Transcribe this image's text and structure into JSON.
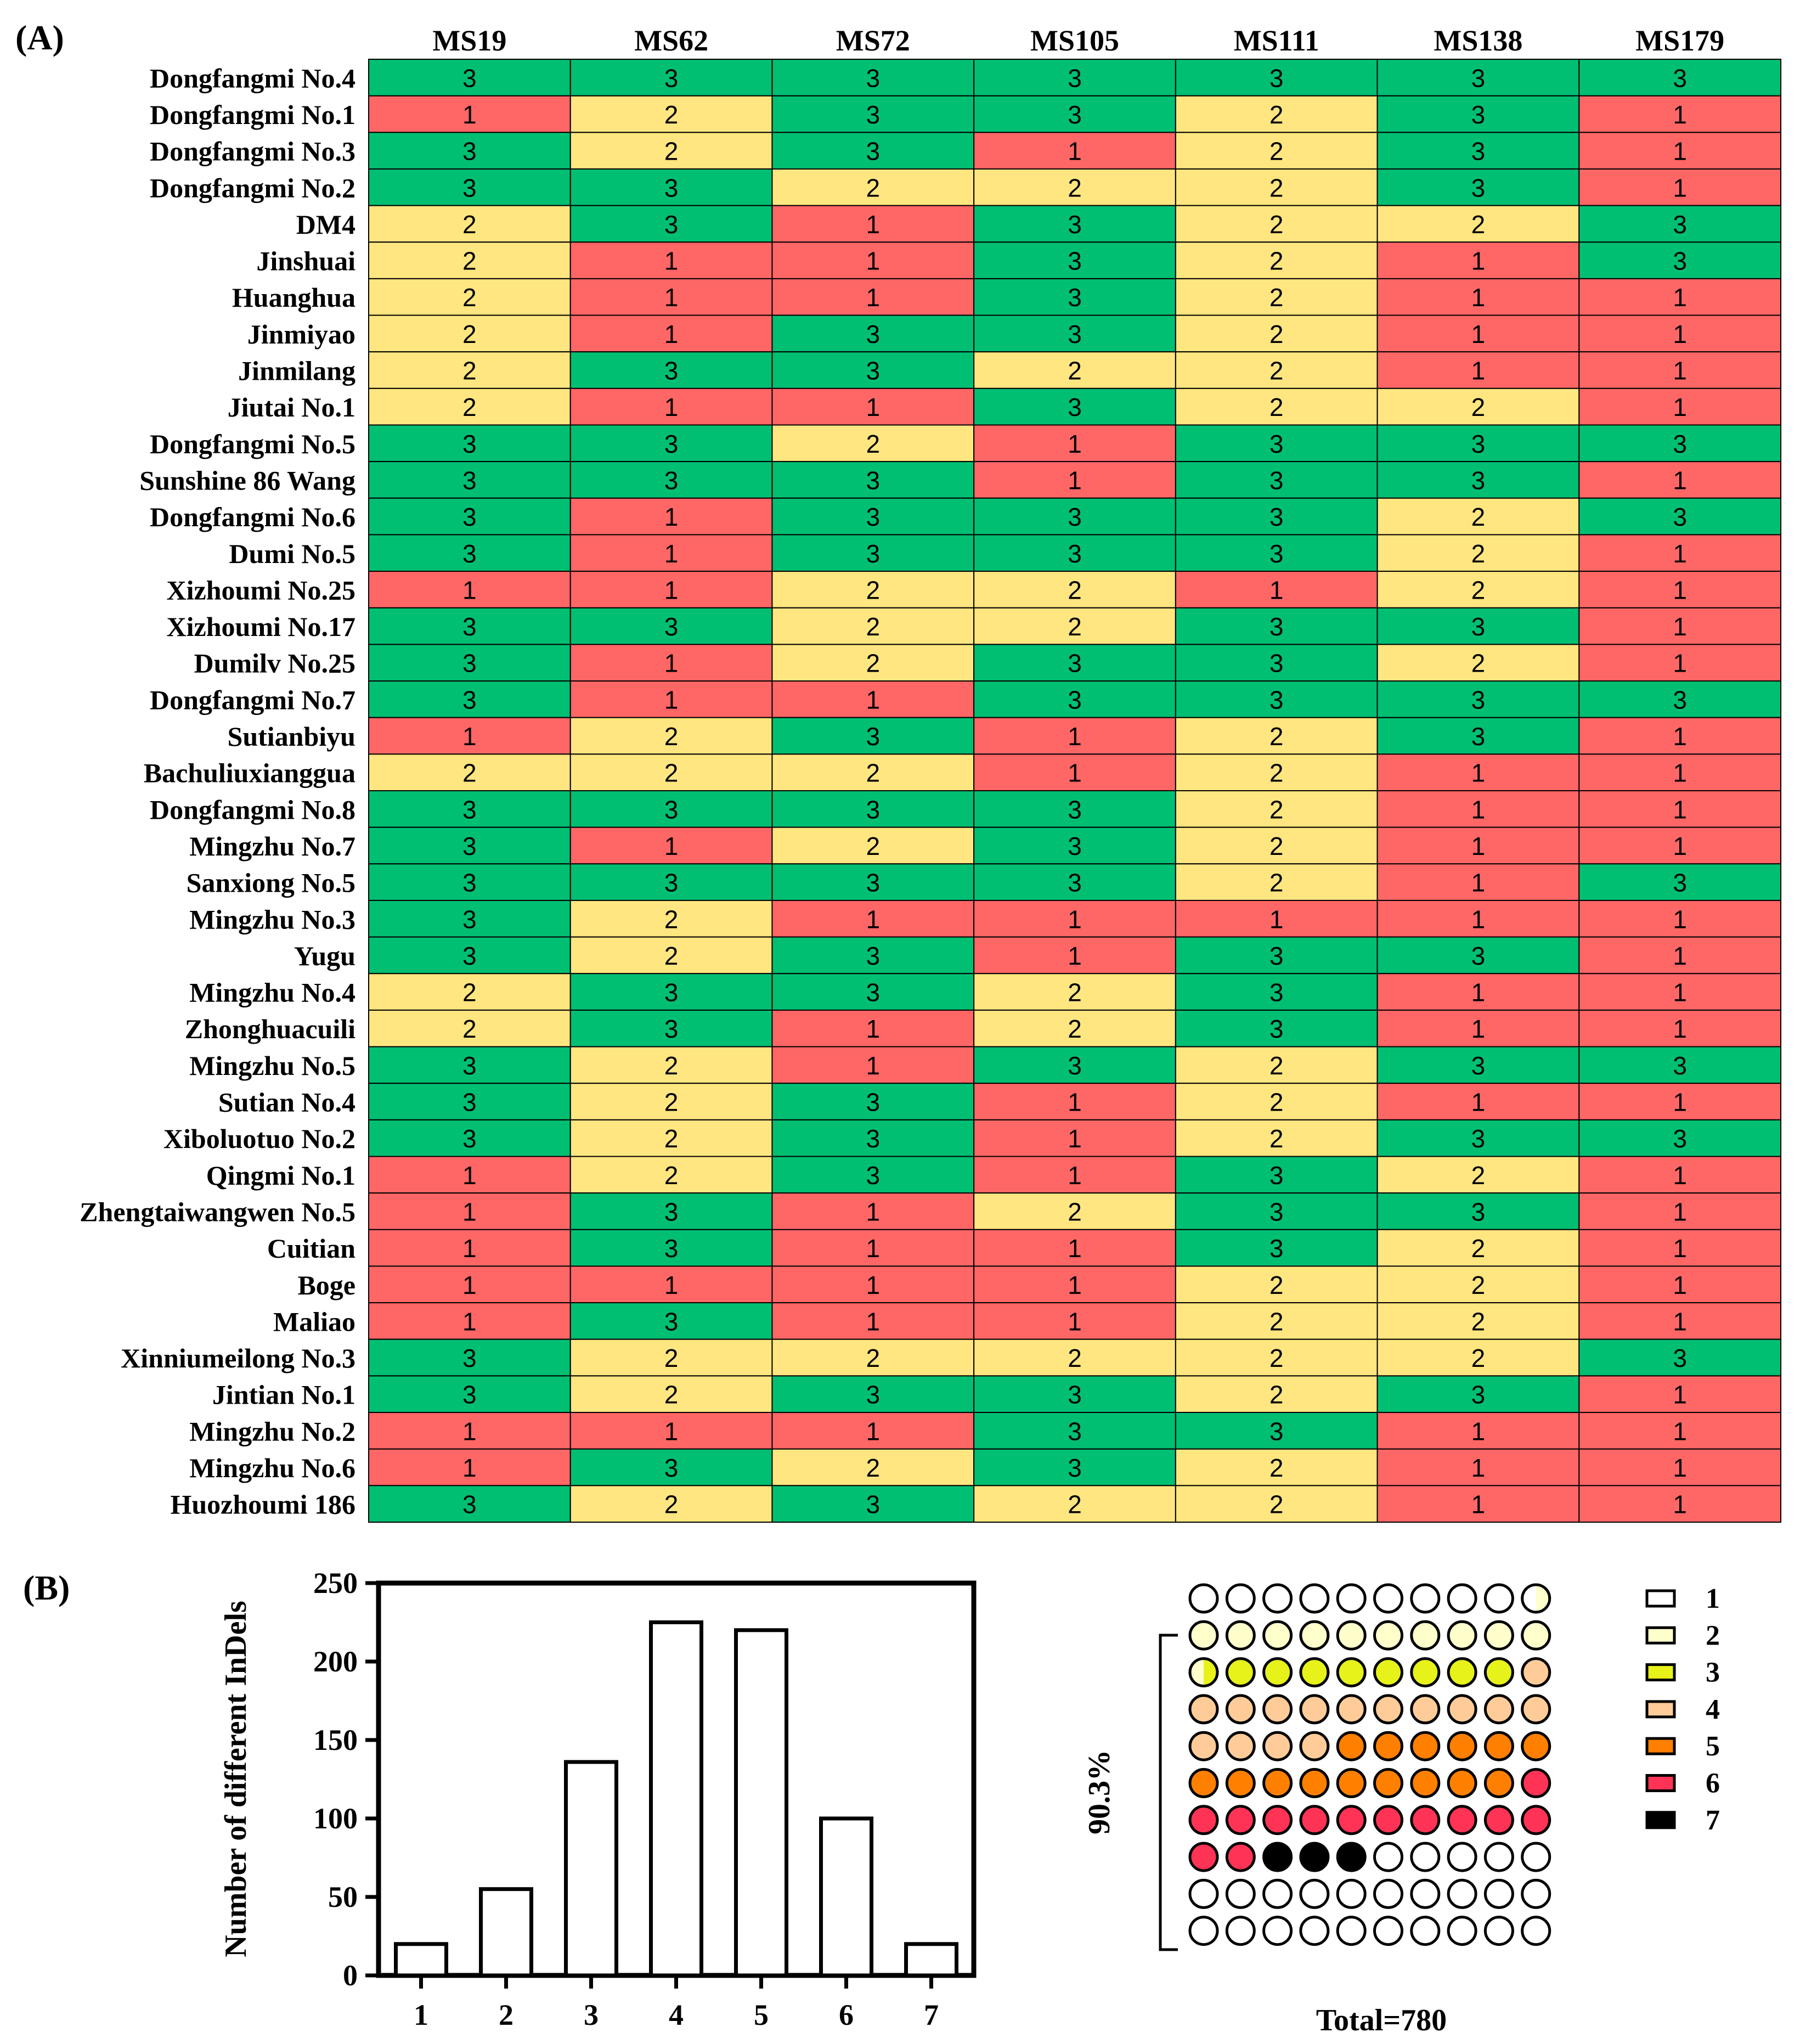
{
  "figure": {
    "panel_a_label": "(A)",
    "panel_b_label": "(B)"
  },
  "chart_data": [
    {
      "type": "heatmap",
      "title": "",
      "columns": [
        "MS19",
        "MS62",
        "MS72",
        "MS105",
        "MS111",
        "MS138",
        "MS179"
      ],
      "rows": [
        "Dongfangmi No.4",
        "Dongfangmi No.1",
        "Dongfangmi No.3",
        "Dongfangmi No.2",
        "DM4",
        "Jinshuai",
        "Huanghua",
        "Jinmiyao",
        "Jinmilang",
        "Jiutai No.1",
        "Dongfangmi No.5",
        "Sunshine 86 Wang",
        "Dongfangmi No.6",
        "Dumi No.5",
        "Xizhoumi No.25",
        "Xizhoumi No.17",
        "Dumilv No.25",
        "Dongfangmi No.7",
        "Sutianbiyu",
        "Bachuliuxianggua",
        "Dongfangmi No.8",
        "Mingzhu No.7",
        "Sanxiong No.5",
        "Mingzhu No.3",
        "Yugu",
        "Mingzhu No.4",
        "Zhonghuacuili",
        "Mingzhu No.5",
        "Sutian No.4",
        "Xiboluotuo No.2",
        "Qingmi No.1",
        "Zhengtaiwangwen No.5",
        "Cuitian",
        "Boge",
        "Maliao",
        "Xinniumeilong No.3",
        "Jintian No.1",
        "Mingzhu No.2",
        "Mingzhu No.6",
        "Huozhoumi 186"
      ],
      "values": [
        [
          3,
          3,
          3,
          3,
          3,
          3,
          3
        ],
        [
          1,
          2,
          3,
          3,
          2,
          3,
          1
        ],
        [
          3,
          2,
          3,
          1,
          2,
          3,
          1
        ],
        [
          3,
          3,
          2,
          2,
          2,
          3,
          1
        ],
        [
          2,
          3,
          1,
          3,
          2,
          2,
          3
        ],
        [
          2,
          1,
          1,
          3,
          2,
          1,
          3
        ],
        [
          2,
          1,
          1,
          3,
          2,
          1,
          1
        ],
        [
          2,
          1,
          3,
          3,
          2,
          1,
          1
        ],
        [
          2,
          3,
          3,
          2,
          2,
          1,
          1
        ],
        [
          2,
          1,
          1,
          3,
          2,
          2,
          1
        ],
        [
          3,
          3,
          2,
          1,
          3,
          3,
          3
        ],
        [
          3,
          3,
          3,
          1,
          3,
          3,
          1
        ],
        [
          3,
          1,
          3,
          3,
          3,
          2,
          3
        ],
        [
          3,
          1,
          3,
          3,
          3,
          2,
          1
        ],
        [
          1,
          1,
          2,
          2,
          1,
          2,
          1
        ],
        [
          3,
          3,
          2,
          2,
          3,
          3,
          1
        ],
        [
          3,
          1,
          2,
          3,
          3,
          2,
          1
        ],
        [
          3,
          1,
          1,
          3,
          3,
          3,
          3
        ],
        [
          1,
          2,
          3,
          1,
          2,
          3,
          1
        ],
        [
          2,
          2,
          2,
          1,
          2,
          1,
          1
        ],
        [
          3,
          3,
          3,
          3,
          2,
          1,
          1
        ],
        [
          3,
          1,
          2,
          3,
          2,
          1,
          1
        ],
        [
          3,
          3,
          3,
          3,
          2,
          1,
          3
        ],
        [
          3,
          2,
          1,
          1,
          1,
          1,
          1
        ],
        [
          3,
          2,
          3,
          1,
          3,
          3,
          1
        ],
        [
          2,
          3,
          3,
          2,
          3,
          1,
          1
        ],
        [
          2,
          3,
          1,
          2,
          3,
          1,
          1
        ],
        [
          3,
          2,
          1,
          3,
          2,
          3,
          3
        ],
        [
          3,
          2,
          3,
          1,
          2,
          1,
          1
        ],
        [
          3,
          2,
          3,
          1,
          2,
          3,
          3
        ],
        [
          1,
          2,
          3,
          1,
          3,
          2,
          1
        ],
        [
          1,
          3,
          1,
          2,
          3,
          3,
          1
        ],
        [
          1,
          3,
          1,
          1,
          3,
          2,
          1
        ],
        [
          1,
          1,
          1,
          1,
          2,
          2,
          1
        ],
        [
          1,
          3,
          1,
          1,
          2,
          2,
          1
        ],
        [
          3,
          2,
          2,
          2,
          2,
          2,
          3
        ],
        [
          3,
          2,
          3,
          3,
          2,
          3,
          1
        ],
        [
          1,
          1,
          1,
          3,
          3,
          1,
          1
        ],
        [
          1,
          3,
          2,
          3,
          2,
          1,
          1
        ],
        [
          3,
          2,
          3,
          2,
          2,
          1,
          1
        ]
      ],
      "colors": {
        "1": "#ff6666",
        "2": "#ffe680",
        "3": "#00bf73"
      }
    },
    {
      "type": "bar",
      "title": "",
      "categories": [
        "1",
        "2",
        "3",
        "4",
        "5",
        "6",
        "7"
      ],
      "values": [
        20,
        55,
        136,
        225,
        220,
        100,
        20
      ],
      "xlabel": "",
      "ylabel": "Number of different InDels",
      "ylim": [
        0,
        250
      ],
      "yticks": [
        "0",
        "50",
        "100",
        "150",
        "200",
        "250"
      ]
    },
    {
      "type": "waffle",
      "title": "",
      "total_label": "Total=780",
      "bracket_label": "90.3%",
      "legend": [
        "1",
        "2",
        "3",
        "4",
        "5",
        "6",
        "7"
      ],
      "counts": [
        9.5,
        11,
        8.5,
        15,
        15,
        13,
        3
      ],
      "colors": [
        "#ffffff",
        "#ffffcc",
        "#e6f21a",
        "#ffcc99",
        "#ff8000",
        "#ff3355",
        "#000000"
      ]
    }
  ]
}
